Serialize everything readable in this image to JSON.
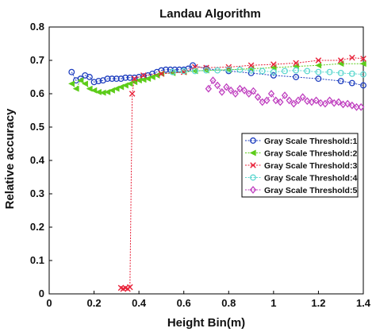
{
  "chart_data": {
    "type": "line",
    "title": "Landau Algorithm",
    "xlabel": "Height Bin(m)",
    "ylabel": "Relative accuracy",
    "xlim": [
      0,
      1.4
    ],
    "ylim": [
      0,
      0.8
    ],
    "xticks": [
      "0",
      "0.2",
      "0.4",
      "0.6",
      "0.8",
      "1",
      "1.2",
      "1.4"
    ],
    "yticks": [
      "0",
      "0.1",
      "0.2",
      "0.3",
      "0.4",
      "0.5",
      "0.6",
      "0.7",
      "0.8"
    ],
    "grid": false,
    "legend_position": "right",
    "series": [
      {
        "name": "Gray Scale Threshold:1",
        "color": "#1f3fbf",
        "marker": "circle",
        "x": [
          0.1,
          0.12,
          0.14,
          0.16,
          0.18,
          0.2,
          0.22,
          0.24,
          0.26,
          0.28,
          0.3,
          0.32,
          0.34,
          0.36,
          0.38,
          0.4,
          0.42,
          0.44,
          0.46,
          0.48,
          0.5,
          0.52,
          0.54,
          0.56,
          0.58,
          0.6,
          0.62,
          0.64,
          0.7,
          0.8,
          0.9,
          1.0,
          1.1,
          1.2,
          1.3,
          1.35,
          1.4
        ],
        "y": [
          0.665,
          0.64,
          0.645,
          0.655,
          0.65,
          0.635,
          0.638,
          0.64,
          0.645,
          0.645,
          0.645,
          0.645,
          0.648,
          0.648,
          0.648,
          0.65,
          0.652,
          0.655,
          0.66,
          0.665,
          0.67,
          0.672,
          0.672,
          0.672,
          0.672,
          0.672,
          0.675,
          0.685,
          0.675,
          0.668,
          0.662,
          0.655,
          0.65,
          0.645,
          0.638,
          0.632,
          0.625
        ]
      },
      {
        "name": "Gray Scale Threshold:2",
        "color": "#5dcc1a",
        "marker": "triangle-left",
        "x": [
          0.1,
          0.12,
          0.14,
          0.16,
          0.18,
          0.2,
          0.22,
          0.24,
          0.26,
          0.28,
          0.3,
          0.32,
          0.34,
          0.36,
          0.38,
          0.4,
          0.42,
          0.44,
          0.46,
          0.48,
          0.5,
          0.55,
          0.6,
          0.65,
          0.7,
          0.8,
          0.9,
          1.0,
          1.1,
          1.2,
          1.3,
          1.4
        ],
        "y": [
          0.63,
          0.615,
          0.64,
          0.63,
          0.615,
          0.61,
          0.605,
          0.603,
          0.605,
          0.61,
          0.615,
          0.62,
          0.625,
          0.63,
          0.635,
          0.64,
          0.642,
          0.645,
          0.65,
          0.655,
          0.66,
          0.662,
          0.665,
          0.668,
          0.67,
          0.672,
          0.675,
          0.678,
          0.682,
          0.685,
          0.69,
          0.69
        ]
      },
      {
        "name": "Gray Scale Threshold:3",
        "color": "#e8233a",
        "marker": "x",
        "x": [
          0.32,
          0.33,
          0.34,
          0.35,
          0.36,
          0.37,
          0.38,
          0.42,
          0.5,
          0.6,
          0.65,
          0.7,
          0.8,
          0.9,
          1.0,
          1.1,
          1.2,
          1.3,
          1.35,
          1.4
        ],
        "y": [
          0.018,
          0.015,
          0.018,
          0.015,
          0.02,
          0.6,
          0.645,
          0.655,
          0.66,
          0.665,
          0.68,
          0.678,
          0.68,
          0.685,
          0.688,
          0.692,
          0.7,
          0.7,
          0.708,
          0.705
        ]
      },
      {
        "name": "Gray Scale Threshold:4",
        "color": "#5fd8d0",
        "marker": "circle",
        "x": [
          0.55,
          0.6,
          0.65,
          0.7,
          0.75,
          0.8,
          0.85,
          0.9,
          0.95,
          1.0,
          1.05,
          1.1,
          1.15,
          1.2,
          1.25,
          1.3,
          1.35,
          1.4
        ],
        "y": [
          0.665,
          0.668,
          0.668,
          0.67,
          0.67,
          0.672,
          0.672,
          0.67,
          0.668,
          0.665,
          0.668,
          0.67,
          0.668,
          0.665,
          0.665,
          0.662,
          0.66,
          0.658
        ]
      },
      {
        "name": "Gray Scale Threshold:5",
        "color": "#bf3fbf",
        "marker": "diamond",
        "x": [
          0.71,
          0.73,
          0.75,
          0.77,
          0.79,
          0.81,
          0.83,
          0.85,
          0.87,
          0.89,
          0.91,
          0.93,
          0.95,
          0.97,
          0.99,
          1.01,
          1.03,
          1.05,
          1.07,
          1.09,
          1.11,
          1.13,
          1.15,
          1.17,
          1.19,
          1.21,
          1.23,
          1.25,
          1.27,
          1.29,
          1.31,
          1.33,
          1.35,
          1.37,
          1.39
        ],
        "y": [
          0.615,
          0.64,
          0.625,
          0.605,
          0.62,
          0.61,
          0.6,
          0.615,
          0.61,
          0.6,
          0.608,
          0.59,
          0.575,
          0.58,
          0.6,
          0.58,
          0.575,
          0.595,
          0.58,
          0.57,
          0.58,
          0.59,
          0.578,
          0.575,
          0.58,
          0.572,
          0.57,
          0.58,
          0.572,
          0.575,
          0.568,
          0.57,
          0.565,
          0.56,
          0.56
        ]
      }
    ]
  }
}
